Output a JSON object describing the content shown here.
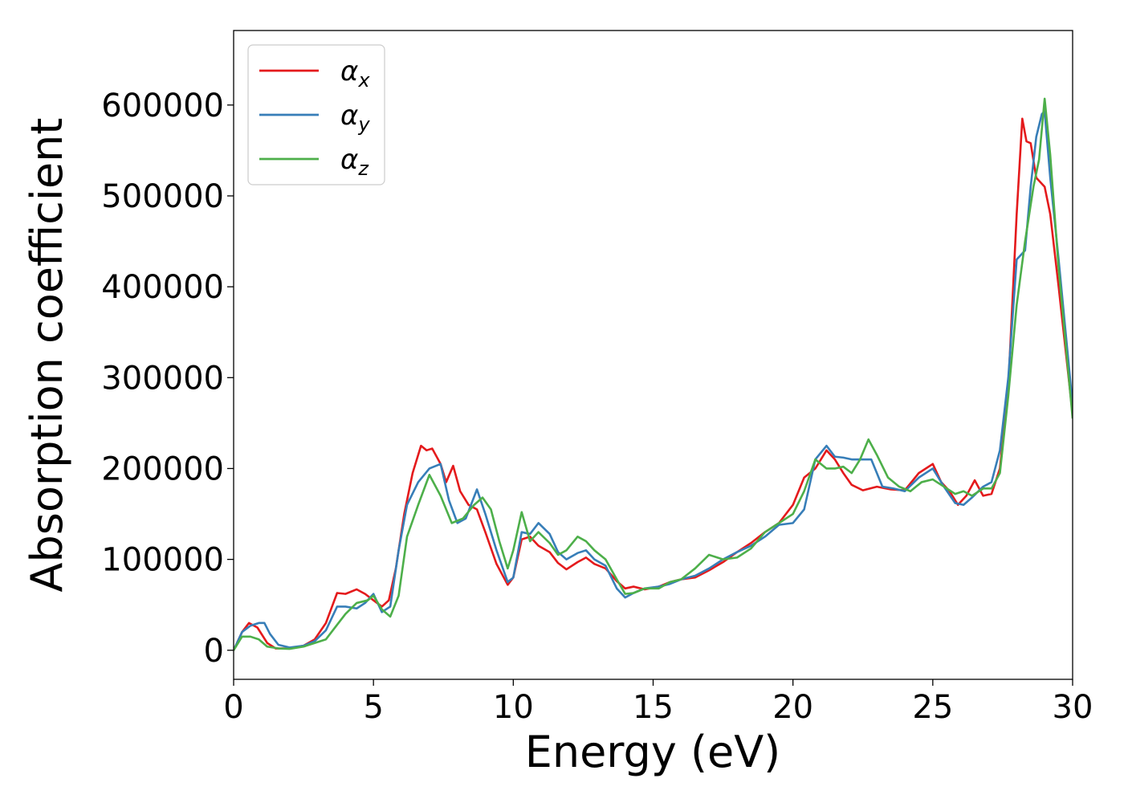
{
  "chart_data": {
    "type": "line",
    "xlabel": "Energy (eV)",
    "ylabel": "Absorption coefficient",
    "xlim": [
      0,
      30
    ],
    "ylim": [
      -32000,
      682000
    ],
    "xticks": [
      0,
      5,
      10,
      15,
      20,
      25,
      30
    ],
    "xtick_labels": [
      "0",
      "5",
      "10",
      "15",
      "20",
      "25",
      "30"
    ],
    "yticks": [
      0,
      100000,
      200000,
      300000,
      400000,
      500000,
      600000
    ],
    "ytick_labels": [
      "0",
      "100000",
      "200000",
      "300000",
      "400000",
      "500000",
      "600000"
    ],
    "grid": false,
    "legend": {
      "position": "upper-left",
      "entries": [
        {
          "symbol": "α",
          "subscript": "x",
          "color": "#e41a1c"
        },
        {
          "symbol": "α",
          "subscript": "y",
          "color": "#377eb8"
        },
        {
          "symbol": "α",
          "subscript": "z",
          "color": "#4daf4a"
        }
      ]
    },
    "series": [
      {
        "name": "αx",
        "color": "#e41a1c",
        "x": [
          0,
          0.3,
          0.55,
          0.85,
          1.2,
          1.5,
          2.0,
          2.5,
          2.9,
          3.3,
          3.7,
          4.0,
          4.4,
          4.7,
          5.0,
          5.3,
          5.55,
          5.8,
          6.1,
          6.4,
          6.7,
          6.9,
          7.1,
          7.4,
          7.6,
          7.85,
          8.1,
          8.4,
          8.7,
          9.0,
          9.4,
          9.8,
          10.0,
          10.3,
          10.6,
          10.9,
          11.3,
          11.6,
          11.9,
          12.3,
          12.6,
          12.9,
          13.3,
          13.7,
          14.0,
          14.3,
          14.7,
          15.2,
          15.6,
          16.0,
          16.5,
          17.0,
          17.5,
          18.0,
          18.5,
          19.0,
          19.5,
          20.0,
          20.4,
          20.8,
          21.2,
          21.5,
          21.8,
          22.1,
          22.5,
          23.0,
          23.5,
          24.0,
          24.5,
          25.0,
          25.3,
          25.6,
          25.9,
          26.2,
          26.5,
          26.8,
          27.1,
          27.4,
          27.7,
          28.0,
          28.2,
          28.35,
          28.5,
          28.7,
          28.85,
          29.0,
          29.2,
          29.5,
          30.0
        ],
        "y": [
          0,
          20000,
          30000,
          25000,
          8000,
          2000,
          2000,
          5000,
          12000,
          30000,
          63000,
          62000,
          67000,
          62000,
          55000,
          48000,
          55000,
          90000,
          150000,
          195000,
          225000,
          220000,
          222000,
          205000,
          185000,
          203000,
          175000,
          160000,
          155000,
          130000,
          95000,
          72000,
          80000,
          122000,
          125000,
          115000,
          108000,
          96000,
          89000,
          97000,
          102000,
          95000,
          90000,
          76000,
          68000,
          70000,
          67000,
          70000,
          75000,
          78000,
          80000,
          88000,
          97000,
          108000,
          118000,
          130000,
          140000,
          160000,
          190000,
          200000,
          220000,
          210000,
          195000,
          182000,
          176000,
          180000,
          177000,
          176000,
          195000,
          205000,
          185000,
          175000,
          160000,
          170000,
          187000,
          170000,
          172000,
          200000,
          290000,
          480000,
          585000,
          560000,
          558000,
          520000,
          515000,
          510000,
          480000,
          400000,
          260000
        ]
      },
      {
        "name": "αy",
        "color": "#377eb8",
        "x": [
          0,
          0.3,
          0.6,
          0.9,
          1.1,
          1.3,
          1.6,
          2.0,
          2.5,
          2.9,
          3.3,
          3.7,
          4.0,
          4.4,
          4.7,
          5.0,
          5.3,
          5.6,
          5.9,
          6.2,
          6.6,
          7.0,
          7.4,
          7.7,
          8.0,
          8.3,
          8.7,
          9.0,
          9.4,
          9.8,
          10.0,
          10.3,
          10.6,
          10.9,
          11.3,
          11.6,
          11.9,
          12.3,
          12.6,
          12.9,
          13.3,
          13.7,
          14.0,
          14.3,
          14.7,
          15.2,
          15.6,
          16.0,
          16.5,
          17.0,
          17.5,
          18.0,
          18.5,
          19.0,
          19.5,
          20.0,
          20.4,
          20.8,
          21.2,
          21.5,
          21.8,
          22.1,
          22.5,
          22.8,
          23.2,
          23.6,
          24.0,
          24.5,
          25.0,
          25.4,
          25.8,
          26.1,
          26.4,
          26.8,
          27.1,
          27.4,
          27.7,
          28.0,
          28.3,
          28.5,
          28.7,
          28.9,
          29.0,
          29.2,
          29.5,
          30.0
        ],
        "y": [
          0,
          20000,
          27000,
          30000,
          30000,
          18000,
          6000,
          3000,
          5000,
          10000,
          22000,
          48000,
          48000,
          46000,
          52000,
          62000,
          42000,
          48000,
          110000,
          160000,
          185000,
          200000,
          205000,
          165000,
          140000,
          145000,
          177000,
          150000,
          110000,
          75000,
          80000,
          130000,
          128000,
          140000,
          128000,
          108000,
          100000,
          107000,
          110000,
          100000,
          93000,
          68000,
          58000,
          63000,
          68000,
          70000,
          73000,
          78000,
          82000,
          90000,
          100000,
          108000,
          115000,
          125000,
          138000,
          140000,
          155000,
          210000,
          225000,
          213000,
          212000,
          210000,
          210000,
          210000,
          180000,
          178000,
          175000,
          190000,
          200000,
          180000,
          162000,
          160000,
          168000,
          180000,
          185000,
          220000,
          300000,
          430000,
          440000,
          510000,
          565000,
          590000,
          593000,
          520000,
          430000,
          270000
        ]
      },
      {
        "name": "αz",
        "color": "#4daf4a",
        "x": [
          0,
          0.3,
          0.6,
          0.9,
          1.2,
          1.6,
          2.0,
          2.5,
          2.9,
          3.3,
          3.7,
          4.0,
          4.4,
          4.8,
          5.0,
          5.3,
          5.6,
          5.9,
          6.2,
          6.6,
          7.0,
          7.4,
          7.8,
          8.2,
          8.6,
          8.9,
          9.2,
          9.5,
          9.8,
          10.0,
          10.3,
          10.6,
          10.9,
          11.3,
          11.6,
          11.9,
          12.3,
          12.6,
          12.9,
          13.3,
          13.7,
          14.0,
          14.3,
          14.7,
          15.2,
          15.6,
          16.0,
          16.5,
          17.0,
          17.5,
          18.0,
          18.5,
          19.0,
          19.5,
          20.0,
          20.4,
          20.8,
          21.2,
          21.5,
          21.8,
          22.1,
          22.4,
          22.7,
          23.0,
          23.4,
          23.8,
          24.2,
          24.6,
          25.0,
          25.4,
          25.8,
          26.1,
          26.4,
          26.8,
          27.1,
          27.4,
          27.7,
          28.0,
          28.3,
          28.6,
          28.8,
          29.0,
          29.2,
          29.5,
          30.0
        ],
        "y": [
          0,
          15000,
          15000,
          12000,
          4000,
          2000,
          1500,
          4000,
          8000,
          12000,
          28000,
          40000,
          52000,
          55000,
          60000,
          45000,
          37000,
          60000,
          125000,
          160000,
          193000,
          170000,
          140000,
          145000,
          160000,
          168000,
          155000,
          120000,
          90000,
          110000,
          152000,
          120000,
          130000,
          118000,
          105000,
          110000,
          125000,
          120000,
          110000,
          100000,
          78000,
          62000,
          63000,
          68000,
          68000,
          75000,
          78000,
          90000,
          105000,
          100000,
          102000,
          112000,
          130000,
          140000,
          150000,
          175000,
          210000,
          200000,
          200000,
          202000,
          195000,
          210000,
          232000,
          215000,
          190000,
          180000,
          175000,
          185000,
          188000,
          180000,
          172000,
          175000,
          170000,
          178000,
          178000,
          195000,
          280000,
          380000,
          450000,
          510000,
          540000,
          607000,
          545000,
          420000,
          255000
        ]
      }
    ]
  }
}
